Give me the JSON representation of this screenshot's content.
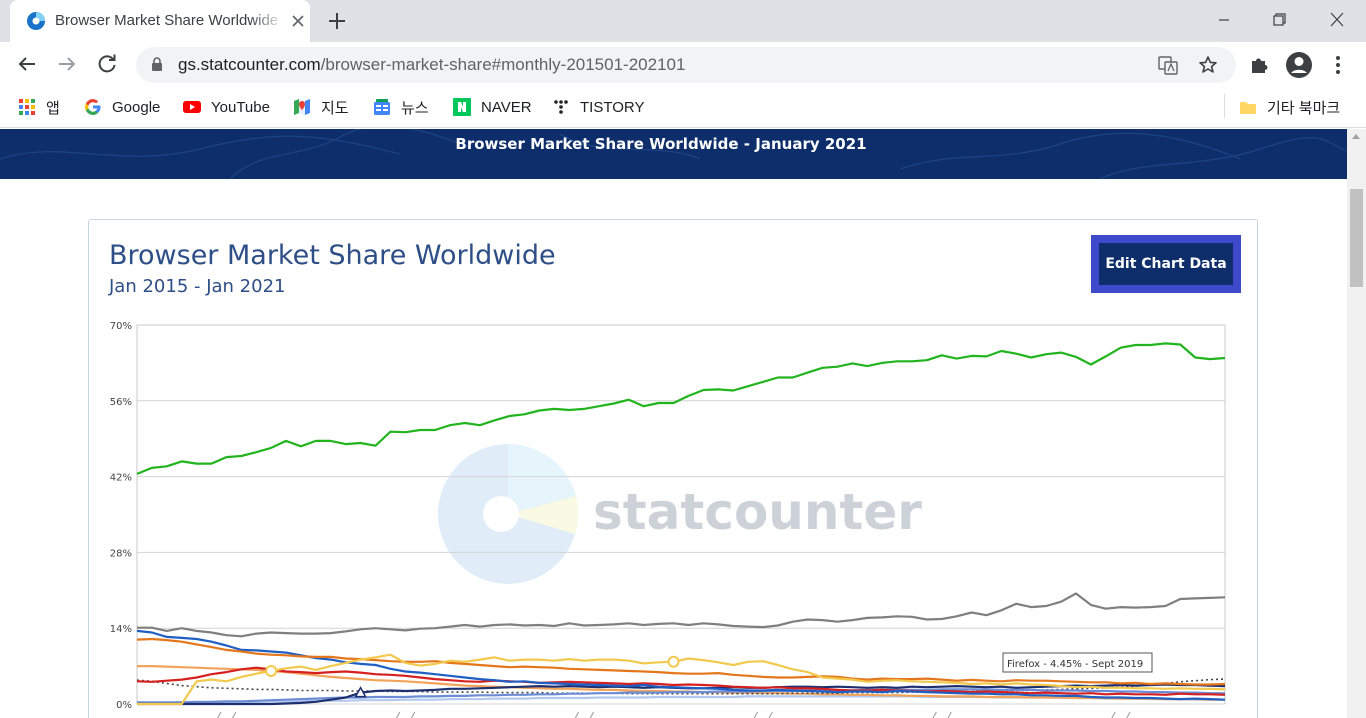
{
  "browser": {
    "tab_title": "Browser Market Share Worldwide - Januar",
    "url_host": "gs.statcounter.com",
    "url_path": "/browser-market-share#monthly-201501-202101",
    "bookmarks": [
      {
        "label": "앱",
        "icon": "apps-grid-icon"
      },
      {
        "label": "Google",
        "icon": "google-icon"
      },
      {
        "label": "YouTube",
        "icon": "youtube-icon"
      },
      {
        "label": "지도",
        "icon": "maps-icon"
      },
      {
        "label": "뉴스",
        "icon": "news-icon"
      },
      {
        "label": "NAVER",
        "icon": "naver-icon"
      },
      {
        "label": "TISTORY",
        "icon": "tistory-icon"
      }
    ],
    "other_bookmarks": "기타 북마크"
  },
  "page": {
    "banner_title": "Browser Market Share Worldwide - January 2021",
    "chart_title": "Browser Market Share Worldwide",
    "chart_subtitle": "Jan 2015 - Jan 2021",
    "edit_button": "Edit Chart Data",
    "watermark": "statcounter",
    "tooltip": "Firefox - 4.45% - Sept 2019"
  },
  "colors": {
    "banner": "#0d2e6b",
    "title": "#2d4e86",
    "edit_button_outer": "#3e49cc",
    "edit_button_inner": "#0d2e6b"
  },
  "chart_data": {
    "type": "line",
    "x_range": [
      "2015-01",
      "2021-01"
    ],
    "y_ticks": [
      "0%",
      "14%",
      "28%",
      "42%",
      "56%",
      "70%"
    ],
    "ylim": [
      0,
      70
    ],
    "grid": true,
    "tooltip": {
      "text": "Firefox - 4.45% - Sept 2019",
      "x_index": 56,
      "y": 4.45
    },
    "series": [
      {
        "color": "#22b41e",
        "values": [
          42.5,
          43.6,
          43.9,
          44.8,
          44.4,
          44.4,
          45.6,
          45.8,
          46.5,
          47.3,
          48.6,
          47.6,
          48.6,
          48.6,
          48.0,
          48.2,
          47.7,
          50.3,
          50.2,
          50.6,
          50.6,
          51.5,
          51.9,
          51.5,
          52.4,
          53.2,
          53.5,
          54.2,
          54.5,
          54.3,
          54.5,
          55.0,
          55.5,
          56.2,
          55.0,
          55.6,
          55.6,
          56.9,
          58.0,
          58.1,
          57.9,
          58.7,
          59.5,
          60.3,
          60.3,
          61.2,
          62.1,
          62.3,
          62.9,
          62.4,
          63.0,
          63.3,
          63.3,
          63.5,
          64.4,
          63.8,
          64.3,
          64.2,
          65.2,
          64.7,
          64.0,
          64.6,
          64.9,
          64.1,
          62.7,
          64.2,
          65.8,
          66.3,
          66.3,
          66.6,
          66.4,
          64.0,
          63.7,
          63.9
        ]
      },
      {
        "color": "#7f7f7f",
        "values": [
          14.1,
          14.1,
          13.5,
          14.0,
          13.5,
          13.2,
          12.7,
          12.5,
          13.0,
          13.2,
          13.1,
          13.0,
          13.0,
          13.1,
          13.4,
          13.8,
          14.0,
          13.8,
          13.6,
          13.9,
          14.0,
          14.3,
          14.6,
          14.3,
          14.6,
          14.7,
          14.5,
          14.6,
          14.4,
          14.9,
          14.5,
          14.6,
          14.7,
          14.9,
          14.6,
          14.8,
          14.9,
          14.6,
          14.9,
          14.7,
          14.4,
          14.3,
          14.2,
          14.5,
          15.2,
          15.6,
          15.5,
          15.2,
          15.5,
          15.9,
          16.0,
          16.2,
          16.1,
          15.6,
          15.7,
          16.2,
          16.9,
          16.4,
          17.3,
          18.5,
          17.9,
          18.1,
          18.9,
          20.4,
          18.3,
          17.6,
          17.9,
          17.8,
          17.9,
          18.1,
          19.4,
          19.5,
          19.6,
          19.7
        ]
      },
      {
        "color": "#f1c94d",
        "values": [
          0,
          0,
          0,
          0,
          4.2,
          4.5,
          4.2,
          5.0,
          5.6,
          6.1,
          6.6,
          6.9,
          6.3,
          7.0,
          7.6,
          8.2,
          8.6,
          9.1,
          7.6,
          7.1,
          7.4,
          8.0,
          7.8,
          8.2,
          8.6,
          8.0,
          8.2,
          8.2,
          8.0,
          8.3,
          8.0,
          8.2,
          8.2,
          8.0,
          7.5,
          7.7,
          7.8,
          8.4,
          8.1,
          7.7,
          7.2,
          7.8,
          7.9,
          7.2,
          6.4,
          5.9,
          4.9,
          4.7,
          4.5,
          4.1,
          4.3,
          4.4,
          4.2,
          4.1,
          4.0,
          3.9,
          3.7,
          3.8,
          3.6,
          3.8,
          3.6,
          3.5,
          3.3,
          3.1,
          3.2,
          3.0,
          3.0,
          2.9,
          2.9,
          2.8,
          2.9,
          2.8,
          2.8,
          2.7
        ]
      },
      {
        "color": "#e4761b",
        "values": [
          11.9,
          12.0,
          11.8,
          11.5,
          11.0,
          10.5,
          10.0,
          9.7,
          9.3,
          9.1,
          9.0,
          8.8,
          8.7,
          8.7,
          8.4,
          8.3,
          8.1,
          7.9,
          7.8,
          7.8,
          7.9,
          7.6,
          7.4,
          7.2,
          7.0,
          6.8,
          6.9,
          6.8,
          6.7,
          6.5,
          6.4,
          6.3,
          6.2,
          6.1,
          6.0,
          5.9,
          5.7,
          5.6,
          5.6,
          5.7,
          5.4,
          5.2,
          5.0,
          4.9,
          4.9,
          5.0,
          5.1,
          5.0,
          4.7,
          4.5,
          4.7,
          4.6,
          4.6,
          4.7,
          4.5,
          4.3,
          4.45,
          4.3,
          4.2,
          4.4,
          4.3,
          4.3,
          4.2,
          4.1,
          4.0,
          4.0,
          3.8,
          3.9,
          3.7,
          3.8,
          3.7,
          3.6,
          3.6,
          3.7
        ]
      },
      {
        "color": "#1f5fc4",
        "values": [
          13.5,
          13.2,
          12.4,
          12.2,
          12.0,
          11.5,
          10.8,
          10.0,
          9.9,
          9.7,
          9.5,
          9.0,
          8.5,
          8.2,
          7.7,
          7.4,
          7.2,
          6.5,
          6.0,
          5.8,
          5.5,
          5.2,
          4.9,
          4.6,
          4.4,
          4.1,
          4.2,
          3.9,
          3.8,
          3.7,
          3.6,
          3.5,
          3.4,
          3.3,
          3.5,
          3.2,
          3.1,
          3.0,
          2.9,
          2.8,
          2.6,
          2.5,
          2.5,
          2.6,
          2.5,
          2.4,
          2.3,
          2.2,
          2.3,
          2.3,
          2.2,
          2.4,
          2.3,
          2.2,
          2.1,
          2.0,
          1.9,
          1.9,
          1.8,
          1.8,
          1.6,
          1.6,
          1.5,
          1.5,
          1.3,
          1.2,
          1.2,
          1.1,
          1.1,
          1.0,
          0.9,
          1.0,
          0.9,
          0.8
        ]
      },
      {
        "color": "#d6201f",
        "values": [
          4.2,
          4.1,
          4.3,
          4.5,
          4.9,
          5.5,
          5.9,
          6.4,
          6.7,
          6.4,
          6.0,
          5.9,
          5.7,
          5.9,
          6.0,
          5.8,
          5.5,
          5.4,
          5.2,
          4.9,
          4.6,
          4.4,
          4.2,
          4.1,
          4.3,
          4.2,
          4.1,
          3.9,
          4.0,
          4.1,
          4.0,
          3.9,
          3.8,
          3.7,
          3.8,
          3.7,
          3.5,
          3.6,
          3.5,
          3.4,
          3.2,
          3.1,
          3.0,
          3.1,
          2.9,
          2.9,
          2.8,
          2.6,
          2.5,
          2.5,
          2.6,
          2.5,
          2.4,
          2.3,
          2.4,
          2.3,
          2.2,
          2.3,
          2.2,
          2.1,
          2.0,
          2.1,
          2.0,
          1.9,
          2.0,
          1.8,
          1.9,
          1.8,
          1.8,
          1.7,
          1.9,
          1.8,
          1.8,
          1.7
        ]
      },
      {
        "color": "#1d2f6f",
        "values": [
          0,
          0,
          0,
          0,
          0,
          0,
          0,
          0,
          0,
          0,
          0.1,
          0.2,
          0.4,
          0.8,
          1.2,
          2.1,
          2.4,
          2.5,
          2.4,
          2.5,
          2.6,
          2.8,
          2.8,
          2.9,
          3.0,
          3.1,
          3.2,
          3.3,
          3.2,
          3.3,
          3.2,
          3.1,
          3.2,
          3.1,
          3.0,
          3.1,
          3.0,
          2.9,
          2.9,
          3.0,
          3.1,
          3.0,
          3.0,
          3.1,
          3.2,
          3.2,
          3.1,
          3.2,
          3.1,
          3.0,
          3.1,
          3.0,
          3.2,
          3.1,
          3.2,
          3.3,
          3.2,
          3.1,
          3.2,
          3.0,
          3.1,
          3.2,
          3.3,
          3.4,
          3.3,
          3.4,
          3.5,
          3.4,
          3.5,
          3.6,
          3.5,
          3.5,
          3.4,
          3.3
        ]
      },
      {
        "color": "#6b8cd4",
        "values": [
          0.3,
          0.3,
          0.3,
          0.3,
          0.4,
          0.4,
          0.5,
          0.5,
          0.6,
          0.7,
          0.8,
          0.9,
          1.0,
          1.1,
          1.2,
          1.2,
          1.3,
          1.3,
          1.3,
          1.4,
          1.4,
          1.5,
          1.5,
          1.6,
          1.6,
          1.7,
          1.7,
          1.8,
          1.8,
          1.9,
          1.9,
          2.0,
          2.0,
          2.1,
          2.1,
          2.1,
          2.2,
          2.2,
          2.2,
          2.3,
          2.3,
          2.3,
          2.4,
          2.4,
          2.4,
          2.5,
          2.5,
          2.5,
          2.5,
          2.6,
          2.6,
          2.6,
          2.6,
          2.6,
          2.7,
          2.7,
          2.7,
          2.7,
          2.6,
          2.6,
          2.6,
          2.5,
          2.5,
          2.5,
          2.4,
          2.4,
          2.3,
          2.3,
          2.2,
          2.2,
          2.1,
          2.1,
          2.0,
          2.0
        ]
      },
      {
        "color": "#444444",
        "dashed": true,
        "values": [
          4.4,
          4.2,
          3.8,
          3.4,
          3.2,
          3.0,
          2.9,
          2.8,
          2.7,
          2.7,
          2.6,
          2.5,
          2.5,
          2.5,
          2.4,
          2.4,
          2.4,
          2.3,
          2.3,
          2.3,
          2.2,
          2.2,
          2.2,
          2.2,
          2.1,
          2.1,
          2.1,
          2.1,
          2.0,
          2.0,
          2.0,
          2.0,
          2.0,
          1.9,
          1.9,
          1.9,
          1.9,
          1.9,
          1.9,
          1.9,
          1.9,
          1.9,
          1.9,
          1.9,
          2.0,
          2.0,
          2.0,
          2.0,
          2.1,
          2.1,
          2.1,
          2.1,
          2.2,
          2.2,
          2.3,
          2.3,
          2.3,
          2.4,
          2.4,
          2.5,
          2.5,
          2.6,
          2.7,
          2.8,
          2.9,
          3.0,
          3.1,
          3.3,
          3.5,
          3.8,
          4.1,
          4.3,
          4.5,
          4.6
        ]
      },
      {
        "color": "#f2a35a",
        "values": [
          7.0,
          7.0,
          6.9,
          6.8,
          6.7,
          6.6,
          6.5,
          6.4,
          6.3,
          6.1,
          5.9,
          5.6,
          5.3,
          5.0,
          4.8,
          4.6,
          4.4,
          4.3,
          4.2,
          4.0,
          3.8,
          3.6,
          3.4,
          3.3,
          3.2,
          3.1,
          3.0,
          2.9,
          2.8,
          2.8,
          2.7,
          2.6,
          2.6,
          2.5,
          2.4,
          2.4,
          2.3,
          2.3,
          2.2,
          2.2,
          2.1,
          2.1,
          2.0,
          2.0,
          1.9,
          1.9,
          1.8,
          1.8,
          1.7,
          1.7,
          1.6,
          1.6,
          1.5,
          1.5,
          1.4,
          1.4,
          1.4,
          1.3,
          1.3,
          1.3,
          1.2,
          1.2,
          1.2,
          1.1,
          1.1,
          1.1,
          1.0,
          1.0,
          1.0,
          0.9,
          0.9,
          0.9,
          0.8,
          0.8
        ]
      },
      {
        "color": "#b2c8ee",
        "values": [
          0.2,
          0.2,
          0.2,
          0.3,
          0.3,
          0.3,
          0.4,
          0.4,
          0.4,
          0.5,
          0.5,
          0.5,
          0.6,
          0.6,
          0.6,
          0.7,
          0.7,
          0.7,
          0.8,
          0.8,
          0.8,
          0.9,
          0.9,
          0.9,
          1.0,
          1.0,
          1.0,
          1.1,
          1.1,
          1.1,
          1.1,
          1.2,
          1.2,
          1.2,
          1.2,
          1.3,
          1.3,
          1.3,
          1.3,
          1.3,
          1.3,
          1.4,
          1.4,
          1.4,
          1.4,
          1.4,
          1.4,
          1.4,
          1.4,
          1.4,
          1.4,
          1.4,
          1.4,
          1.3,
          1.3,
          1.3,
          1.3,
          1.3,
          1.2,
          1.2,
          1.2,
          1.2,
          1.1,
          1.1,
          1.1,
          1.0,
          1.0,
          1.0,
          0.9,
          0.9,
          0.9,
          0.8,
          0.8,
          0.8
        ]
      }
    ]
  }
}
